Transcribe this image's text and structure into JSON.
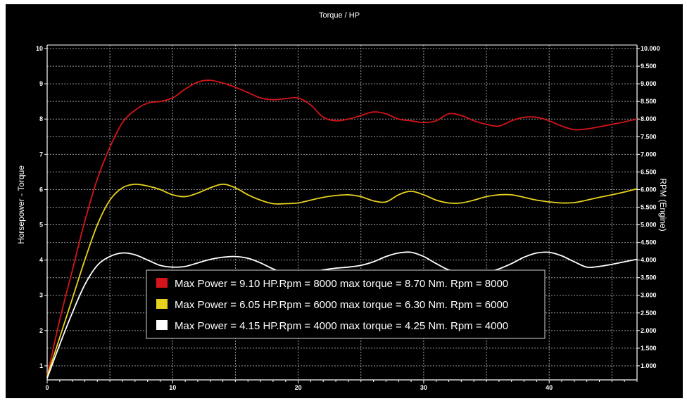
{
  "chart_data": {
    "type": "line",
    "title": "Torque / HP",
    "ylabel": "Horsepower - Torque",
    "y2label": "RPM (Engine)",
    "xlim": [
      0,
      47
    ],
    "ylim": [
      0.6,
      10.1
    ],
    "y2lim": [
      600,
      10100
    ],
    "x_ticks": [
      "0",
      "10",
      "20",
      "30",
      "40"
    ],
    "y_ticks": [
      "1",
      "2",
      "3",
      "4",
      "5",
      "6",
      "7",
      "8",
      "9",
      "10"
    ],
    "y2_ticks": [
      "1.000",
      "1.500",
      "2.000",
      "2.500",
      "3.000",
      "3.500",
      "4.000",
      "4.500",
      "5.000",
      "5.500",
      "6.000",
      "6.500",
      "7.000",
      "7.500",
      "8.000",
      "8.500",
      "9.000",
      "9.500",
      "10.000"
    ],
    "grid": true,
    "legend_position": "bottom-center",
    "series": [
      {
        "name": "Max Power = 9.10 HP.Rpm = 8000 max torque = 8.70 Nm. Rpm = 8000",
        "color": "#d41418",
        "x": [
          0,
          1,
          2,
          3,
          4,
          5,
          6,
          7,
          8,
          9,
          10,
          11,
          12,
          13,
          14,
          15,
          16,
          17,
          18,
          19,
          20,
          21,
          22,
          23,
          24,
          25,
          26,
          27,
          28,
          29,
          30,
          31,
          32,
          33,
          34,
          35,
          36,
          37,
          38,
          39,
          40,
          41,
          42,
          43,
          44,
          45,
          46,
          47
        ],
        "y": [
          0.7,
          2.3,
          3.7,
          5.1,
          6.3,
          7.2,
          7.9,
          8.25,
          8.45,
          8.5,
          8.6,
          8.85,
          9.05,
          9.1,
          9.02,
          8.9,
          8.75,
          8.6,
          8.55,
          8.58,
          8.6,
          8.4,
          8.05,
          7.95,
          8.0,
          8.1,
          8.2,
          8.15,
          8.0,
          7.95,
          7.9,
          7.95,
          8.15,
          8.1,
          7.95,
          7.85,
          7.8,
          7.95,
          8.05,
          8.05,
          7.95,
          7.8,
          7.7,
          7.72,
          7.78,
          7.85,
          7.92,
          8.0
        ]
      },
      {
        "name": "Max Power = 6.05 HP.Rpm = 6000 max torque = 6.30 Nm. Rpm = 6000",
        "color": "#e8d21e",
        "x": [
          0,
          1,
          2,
          3,
          4,
          5,
          6,
          7,
          8,
          9,
          10,
          11,
          12,
          13,
          14,
          15,
          16,
          17,
          18,
          19,
          20,
          21,
          22,
          23,
          24,
          25,
          26,
          27,
          28,
          29,
          30,
          31,
          32,
          33,
          34,
          35,
          36,
          37,
          38,
          39,
          40,
          41,
          42,
          43,
          44,
          45,
          46,
          47
        ],
        "y": [
          0.7,
          1.8,
          2.9,
          4.0,
          5.0,
          5.7,
          6.05,
          6.15,
          6.1,
          6.0,
          5.85,
          5.8,
          5.9,
          6.05,
          6.15,
          6.05,
          5.85,
          5.7,
          5.6,
          5.6,
          5.62,
          5.7,
          5.78,
          5.83,
          5.85,
          5.8,
          5.68,
          5.65,
          5.85,
          5.95,
          5.85,
          5.7,
          5.62,
          5.62,
          5.7,
          5.8,
          5.85,
          5.85,
          5.78,
          5.7,
          5.65,
          5.62,
          5.63,
          5.7,
          5.78,
          5.85,
          5.93,
          6.02
        ]
      },
      {
        "name": "Max Power = 4.15 HP.Rpm = 4000 max torque = 4.25 Nm. Rpm = 4000",
        "color": "#ffffff",
        "x": [
          0,
          1,
          2,
          3,
          4,
          5,
          6,
          7,
          8,
          9,
          10,
          11,
          12,
          13,
          14,
          15,
          16,
          17,
          18,
          19,
          20,
          21,
          22,
          23,
          24,
          25,
          26,
          27,
          28,
          29,
          30,
          31,
          32,
          33,
          34,
          35,
          36,
          37,
          38,
          39,
          40,
          41,
          42,
          43,
          44,
          45,
          46,
          47
        ],
        "y": [
          0.65,
          1.6,
          2.5,
          3.3,
          3.85,
          4.1,
          4.2,
          4.15,
          4.0,
          3.85,
          3.8,
          3.82,
          3.92,
          4.02,
          4.08,
          4.1,
          4.05,
          3.92,
          3.75,
          3.62,
          3.6,
          3.65,
          3.72,
          3.77,
          3.8,
          3.85,
          3.95,
          4.1,
          4.2,
          4.22,
          4.1,
          3.9,
          3.72,
          3.65,
          3.62,
          3.65,
          3.75,
          3.9,
          4.08,
          4.2,
          4.22,
          4.12,
          3.95,
          3.8,
          3.82,
          3.88,
          3.95,
          4.02
        ]
      }
    ]
  }
}
